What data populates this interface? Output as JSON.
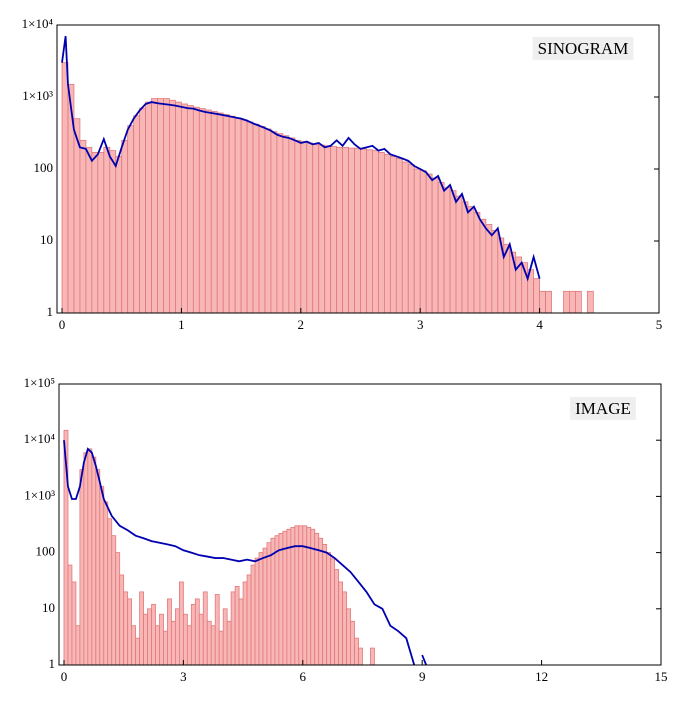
{
  "chart_data": [
    {
      "type": "histogram",
      "label": "SINOGRAM",
      "log_y": true,
      "color": "#f8b6b6",
      "edgecolor": "#e07a7a",
      "bins": [
        0,
        0.05,
        0.1,
        0.15,
        0.2,
        0.25,
        0.3,
        0.35,
        0.4,
        0.45,
        0.5,
        0.55,
        0.6,
        0.65,
        0.7,
        0.75,
        0.8,
        0.85,
        0.9,
        0.95,
        1,
        1.05,
        1.1,
        1.15,
        1.2,
        1.25,
        1.3,
        1.35,
        1.4,
        1.45,
        1.5,
        1.55,
        1.6,
        1.65,
        1.7,
        1.75,
        1.8,
        1.85,
        1.9,
        1.95,
        2,
        2.05,
        2.1,
        2.15,
        2.2,
        2.25,
        2.3,
        2.35,
        2.4,
        2.45,
        2.5,
        2.55,
        2.6,
        2.65,
        2.7,
        2.75,
        2.8,
        2.85,
        2.9,
        2.95,
        3,
        3.05,
        3.1,
        3.15,
        3.2,
        3.25,
        3.3,
        3.35,
        3.4,
        3.45,
        3.5,
        3.55,
        3.6,
        3.65,
        3.7,
        3.75,
        3.8,
        3.85,
        3.9,
        3.95,
        4,
        4.05,
        4.1,
        4.15,
        4.2,
        4.25,
        4.3,
        4.35,
        4.4,
        4.45,
        4.5
      ],
      "values": [
        3000,
        1500,
        500,
        250,
        200,
        170,
        170,
        200,
        180,
        150,
        250,
        400,
        550,
        700,
        850,
        950,
        950,
        950,
        900,
        850,
        800,
        760,
        720,
        690,
        660,
        630,
        600,
        570,
        540,
        510,
        480,
        450,
        420,
        390,
        360,
        330,
        310,
        290,
        270,
        250,
        240,
        230,
        220,
        215,
        210,
        205,
        200,
        200,
        195,
        195,
        190,
        185,
        180,
        170,
        160,
        150,
        140,
        125,
        115,
        100,
        95,
        85,
        75,
        65,
        55,
        50,
        42,
        35,
        30,
        25,
        20,
        17,
        14,
        11,
        9,
        7,
        6,
        5,
        4,
        3,
        2,
        2,
        1,
        1,
        2,
        2,
        2,
        1,
        2,
        1
      ],
      "overlay": {
        "color": "#0000b0",
        "x": [
          0,
          0.03,
          0.05,
          0.1,
          0.15,
          0.2,
          0.25,
          0.3,
          0.35,
          0.4,
          0.45,
          0.5,
          0.55,
          0.6,
          0.65,
          0.7,
          0.75,
          0.8,
          0.85,
          0.9,
          0.95,
          1,
          1.05,
          1.1,
          1.15,
          1.2,
          1.25,
          1.3,
          1.35,
          1.4,
          1.45,
          1.5,
          1.55,
          1.6,
          1.65,
          1.7,
          1.75,
          1.8,
          1.85,
          1.9,
          1.95,
          2,
          2.05,
          2.1,
          2.15,
          2.2,
          2.25,
          2.3,
          2.35,
          2.4,
          2.45,
          2.5,
          2.55,
          2.6,
          2.65,
          2.7,
          2.75,
          2.8,
          2.85,
          2.9,
          2.95,
          3,
          3.05,
          3.1,
          3.15,
          3.2,
          3.25,
          3.3,
          3.35,
          3.4,
          3.45,
          3.5,
          3.55,
          3.6,
          3.65,
          3.7,
          3.75,
          3.8,
          3.85,
          3.9,
          3.95,
          4
        ],
        "values": [
          3000,
          7000,
          1500,
          350,
          200,
          190,
          130,
          160,
          260,
          150,
          110,
          200,
          350,
          500,
          650,
          800,
          850,
          820,
          800,
          780,
          760,
          730,
          700,
          690,
          650,
          620,
          600,
          580,
          560,
          540,
          520,
          500,
          470,
          430,
          400,
          370,
          340,
          300,
          280,
          270,
          250,
          230,
          240,
          220,
          230,
          200,
          210,
          250,
          210,
          270,
          220,
          190,
          200,
          210,
          180,
          190,
          160,
          150,
          140,
          130,
          110,
          100,
          90,
          70,
          80,
          50,
          60,
          35,
          45,
          25,
          30,
          20,
          15,
          12,
          15,
          6,
          9,
          4,
          5,
          3,
          6,
          3
        ]
      },
      "xlim": [
        -0.042,
        5
      ],
      "xticks": [
        0,
        1,
        2,
        3,
        4,
        5
      ],
      "ylim": [
        1,
        10000
      ],
      "yticks": [
        1,
        10,
        100,
        {
          "value": 1000,
          "label": "1×10³"
        },
        {
          "value": 10000,
          "label": "1×10⁴"
        }
      ]
    },
    {
      "type": "histogram",
      "label": "IMAGE",
      "log_y": true,
      "color": "#f8b6b6",
      "edgecolor": "#e07a7a",
      "bins": [
        0,
        0.1,
        0.2,
        0.3,
        0.4,
        0.5,
        0.6,
        0.7,
        0.8,
        0.9,
        1,
        1.1,
        1.2,
        1.3,
        1.4,
        1.5,
        1.6,
        1.7,
        1.8,
        1.9,
        2,
        2.1,
        2.2,
        2.3,
        2.4,
        2.5,
        2.6,
        2.7,
        2.8,
        2.9,
        3,
        3.1,
        3.2,
        3.3,
        3.4,
        3.5,
        3.6,
        3.7,
        3.8,
        3.9,
        4,
        4.1,
        4.2,
        4.3,
        4.4,
        4.5,
        4.6,
        4.7,
        4.8,
        4.9,
        5,
        5.1,
        5.2,
        5.3,
        5.4,
        5.5,
        5.6,
        5.7,
        5.8,
        5.9,
        6,
        6.1,
        6.2,
        6.3,
        6.4,
        6.5,
        6.6,
        6.7,
        6.8,
        6.9,
        7,
        7.1,
        7.2,
        7.3,
        7.4,
        7.5,
        7.6,
        7.7,
        7.8,
        7.9,
        8
      ],
      "values": [
        15000,
        60,
        30,
        5,
        3000,
        6000,
        7000,
        5000,
        3000,
        1500,
        800,
        400,
        200,
        100,
        40,
        20,
        15,
        5,
        3,
        20,
        8,
        10,
        12,
        5,
        8,
        4,
        15,
        6,
        10,
        30,
        8,
        5,
        12,
        15,
        8,
        20,
        6,
        5,
        18,
        4,
        10,
        6,
        20,
        25,
        15,
        30,
        40,
        60,
        80,
        100,
        120,
        150,
        180,
        200,
        220,
        240,
        260,
        280,
        300,
        300,
        300,
        280,
        260,
        220,
        180,
        140,
        100,
        80,
        50,
        30,
        20,
        10,
        6,
        3,
        2,
        1,
        1,
        2,
        1,
        1
      ],
      "overlay": {
        "color": "#0000b0",
        "x": [
          0,
          0.1,
          0.2,
          0.3,
          0.4,
          0.5,
          0.6,
          0.7,
          0.8,
          0.9,
          1,
          1.2,
          1.4,
          1.6,
          1.8,
          2,
          2.2,
          2.4,
          2.6,
          2.8,
          3,
          3.2,
          3.4,
          3.6,
          3.8,
          4,
          4.2,
          4.4,
          4.6,
          4.8,
          5,
          5.2,
          5.4,
          5.6,
          5.8,
          6,
          6.2,
          6.4,
          6.6,
          6.8,
          7,
          7.2,
          7.4,
          7.6,
          7.8,
          8,
          8.2,
          8.4,
          8.6,
          8.8,
          8.9,
          9,
          9.1
        ],
        "values": [
          10000,
          1500,
          900,
          900,
          1500,
          4000,
          7000,
          6000,
          3500,
          1800,
          900,
          450,
          300,
          250,
          200,
          180,
          160,
          150,
          140,
          130,
          110,
          100,
          90,
          85,
          80,
          80,
          75,
          70,
          75,
          70,
          80,
          90,
          110,
          120,
          130,
          130,
          120,
          110,
          100,
          80,
          60,
          45,
          30,
          20,
          12,
          10,
          5,
          4,
          3,
          1,
          null,
          1.5,
          1
        ]
      },
      "xlim": [
        -0.125,
        15
      ],
      "xticks": [
        0,
        3,
        6,
        9,
        12,
        15
      ],
      "ylim": [
        1,
        100000
      ],
      "yticks": [
        1,
        10,
        100,
        {
          "value": 1000,
          "label": "1×10³"
        },
        {
          "value": 10000,
          "label": "1×10⁴"
        },
        {
          "value": 100000,
          "label": "1×10⁵"
        }
      ]
    }
  ]
}
